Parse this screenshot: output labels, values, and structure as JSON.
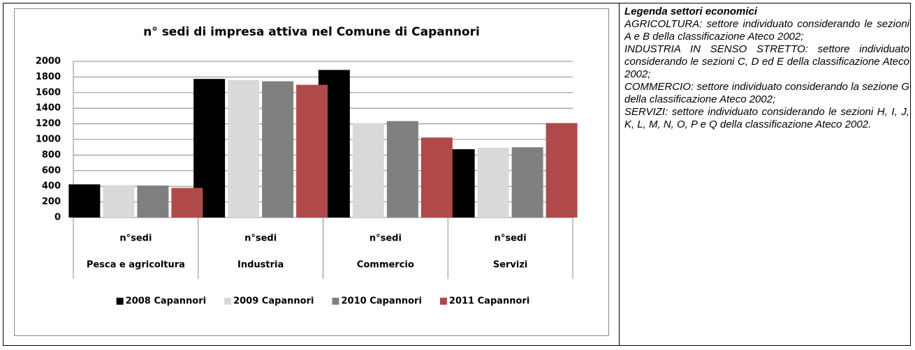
{
  "chart_data": {
    "type": "bar",
    "title": "n° sedi di impresa attiva nel Comune di Capannori",
    "categories": [
      "Pesca e agricoltura",
      "Industria",
      "Commercio",
      "Servizi"
    ],
    "category_sublabels": [
      "n°sedi",
      "n°sedi",
      "n°sedi",
      "n°sedi"
    ],
    "series": [
      {
        "name": "2008 Capannori",
        "color": "#000000",
        "values": [
          425,
          1775,
          1890,
          875
        ]
      },
      {
        "name": "2009 Capannori",
        "color": "#d9d9d9",
        "values": [
          415,
          1760,
          1210,
          895
        ]
      },
      {
        "name": "2010 Capannori",
        "color": "#808080",
        "values": [
          410,
          1745,
          1235,
          900
        ]
      },
      {
        "name": "2011 Capannori",
        "color": "#b04a4a",
        "values": [
          380,
          1700,
          1025,
          1210
        ]
      }
    ],
    "ylim": [
      0,
      2000
    ],
    "yticks": [
      0,
      200,
      400,
      600,
      800,
      1000,
      1200,
      1400,
      1600,
      1800,
      2000
    ],
    "grid": true,
    "legend": "bottom"
  },
  "side_note": {
    "title": "Legenda settori economici",
    "paragraphs": [
      "AGRICOLTURA: settore individuato considerando le sezioni A e B della classificazione Ateco 2002;",
      "INDUSTRIA IN SENSO STRETTO: settore individuato considerando le sezioni C, D ed E della classificazione Ateco 2002;",
      "COMMERCIO: settore individuato considerando la sezione G della classificazione Ateco 2002;",
      "SERVIZI: settore individuato considerando le sezioni H, I, J, K, L, M, N, O, P e Q della classificazione Ateco 2002."
    ]
  }
}
